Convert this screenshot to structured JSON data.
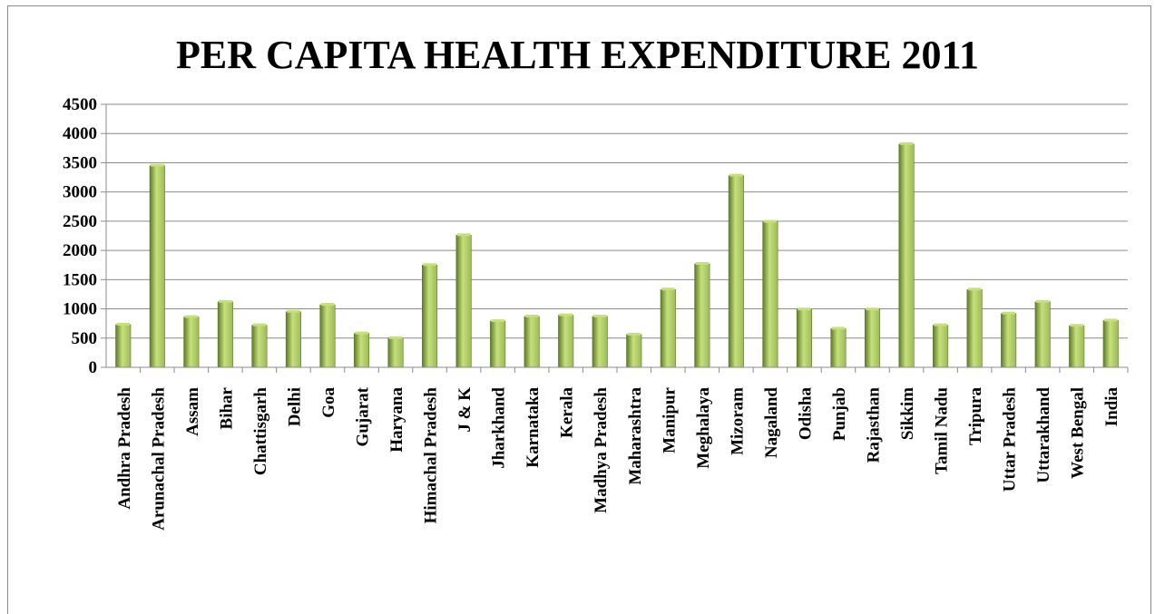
{
  "chart_data": {
    "type": "bar",
    "title": "PER CAPITA HEALTH EXPENDITURE 2011",
    "xlabel": "",
    "ylabel": "",
    "ylim": [
      0,
      4500
    ],
    "yticks": [
      0,
      500,
      1000,
      1500,
      2000,
      2500,
      3000,
      3500,
      4000,
      4500
    ],
    "grid": true,
    "legend": "none",
    "colors": {
      "bar_light": "#c6e07a",
      "bar_mid": "#9bbb59",
      "bar_dark": "#5f7a2a",
      "grid": "#8c8c8c"
    },
    "categories": [
      "Andhra Pradesh",
      "Arunachal Pradesh",
      "Assam",
      "Bihar",
      "Chattisgarh",
      "Delhi",
      "Goa",
      "Gujarat",
      "Haryana",
      "Himachal Pradesh",
      "J & K",
      "Jharkhand",
      "Karnataka",
      "Kerala",
      "Madhya Pradesh",
      "Maharashtra",
      "Manipur",
      "Meghalaya",
      "Mizoram",
      "Nagaland",
      "Odisha",
      "Punjab",
      "Rajasthan",
      "Sikkim",
      "Tamil Nadu",
      "Tripura",
      "Uttar Pradesh",
      "Uttarakhand",
      "West Bengal",
      "India"
    ],
    "values": [
      730,
      3450,
      860,
      1120,
      720,
      950,
      1070,
      580,
      500,
      1750,
      2260,
      790,
      870,
      890,
      870,
      560,
      1330,
      1770,
      3280,
      2490,
      990,
      660,
      990,
      3820,
      720,
      1330,
      920,
      1120,
      710,
      800
    ]
  }
}
